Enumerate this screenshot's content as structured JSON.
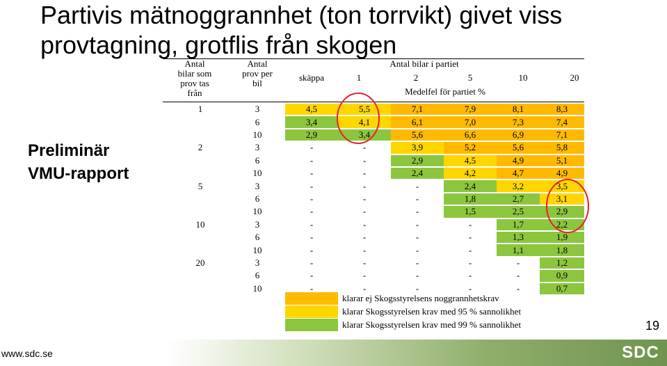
{
  "title": "Partivis mätnoggrannhet (ton torrvikt) givet viss provtagning, grotflis från skogen",
  "side_label_line1": "Preliminär",
  "side_label_line2": "VMU-rapport",
  "page_number": "19",
  "footer_url": "www.sdc.se",
  "logo_text": "SDC",
  "colors": {
    "yellow": "#ffd600",
    "orange": "#ffb900",
    "green": "#8cc63e",
    "circle": "#e8202a"
  },
  "table": {
    "col_header_trucks": "Antal\nbilar som\nprov tas\nfrån",
    "col_header_samples": "Antal\nprov per\nbil",
    "col_header_group": "Antal bilar i partiet",
    "col_header_skappa": "skäppa",
    "batch_sizes": [
      "1",
      "2",
      "5",
      "10",
      "20"
    ],
    "col_header_subtitle": "Medelfel för partiet %",
    "rows": [
      {
        "trucks": "1",
        "samples": "3",
        "values": [
          "4,5",
          "5,5",
          "7,1",
          "7,9",
          "8,1",
          "8,3"
        ],
        "status": [
          "yellow",
          "yellow",
          "orange",
          "orange",
          "orange",
          "orange"
        ]
      },
      {
        "trucks": "",
        "samples": "6",
        "values": [
          "3,4",
          "4,1",
          "6,1",
          "7,0",
          "7,3",
          "7,4"
        ],
        "status": [
          "green",
          "yellow",
          "orange",
          "orange",
          "orange",
          "orange"
        ]
      },
      {
        "trucks": "",
        "samples": "10",
        "values": [
          "2,9",
          "3,4",
          "5,6",
          "6,6",
          "6,9",
          "7,1"
        ],
        "status": [
          "green",
          "green",
          "orange",
          "orange",
          "orange",
          "orange"
        ]
      },
      {
        "trucks": "2",
        "samples": "3",
        "values": [
          "-",
          "-",
          "3,9",
          "5,2",
          "5,6",
          "5,8"
        ],
        "status": [
          "none",
          "none",
          "yellow",
          "orange",
          "orange",
          "orange"
        ]
      },
      {
        "trucks": "",
        "samples": "6",
        "values": [
          "-",
          "-",
          "2,9",
          "4,5",
          "4,9",
          "5,1"
        ],
        "status": [
          "none",
          "none",
          "green",
          "yellow",
          "orange",
          "orange"
        ]
      },
      {
        "trucks": "",
        "samples": "10",
        "values": [
          "-",
          "-",
          "2,4",
          "4,2",
          "4,7",
          "4,9"
        ],
        "status": [
          "none",
          "none",
          "green",
          "yellow",
          "orange",
          "orange"
        ]
      },
      {
        "trucks": "5",
        "samples": "3",
        "values": [
          "-",
          "-",
          "-",
          "2,4",
          "3,2",
          "3,5"
        ],
        "status": [
          "none",
          "none",
          "none",
          "green",
          "yellow",
          "yellow"
        ]
      },
      {
        "trucks": "",
        "samples": "6",
        "values": [
          "-",
          "-",
          "-",
          "1,8",
          "2,7",
          "3,1"
        ],
        "status": [
          "none",
          "none",
          "none",
          "green",
          "green",
          "yellow"
        ]
      },
      {
        "trucks": "",
        "samples": "10",
        "values": [
          "-",
          "-",
          "-",
          "1,5",
          "2,5",
          "2,9"
        ],
        "status": [
          "none",
          "none",
          "none",
          "green",
          "green",
          "green"
        ]
      },
      {
        "trucks": "10",
        "samples": "3",
        "values": [
          "-",
          "-",
          "-",
          "-",
          "1,7",
          "2,2"
        ],
        "status": [
          "none",
          "none",
          "none",
          "none",
          "green",
          "green"
        ]
      },
      {
        "trucks": "",
        "samples": "6",
        "values": [
          "-",
          "-",
          "-",
          "-",
          "1,3",
          "1,9"
        ],
        "status": [
          "none",
          "none",
          "none",
          "none",
          "green",
          "green"
        ]
      },
      {
        "trucks": "",
        "samples": "10",
        "values": [
          "-",
          "-",
          "-",
          "-",
          "1,1",
          "1,8"
        ],
        "status": [
          "none",
          "none",
          "none",
          "none",
          "green",
          "green"
        ]
      },
      {
        "trucks": "20",
        "samples": "3",
        "values": [
          "-",
          "-",
          "-",
          "-",
          "-",
          "1,2"
        ],
        "status": [
          "none",
          "none",
          "none",
          "none",
          "none",
          "green"
        ]
      },
      {
        "trucks": "",
        "samples": "6",
        "values": [
          "-",
          "-",
          "-",
          "-",
          "-",
          "0,9"
        ],
        "status": [
          "none",
          "none",
          "none",
          "none",
          "none",
          "green"
        ]
      },
      {
        "trucks": "",
        "samples": "10",
        "values": [
          "-",
          "-",
          "-",
          "-",
          "-",
          "0,7"
        ],
        "status": [
          "none",
          "none",
          "none",
          "none",
          "none",
          "green"
        ]
      }
    ]
  },
  "legend": [
    {
      "color": "orange",
      "label": "klarar ej Skogsstyrelsens noggrannhetskrav"
    },
    {
      "color": "yellow",
      "label": "klarar Skogsstyrelsen krav med 95 % sannolikhet"
    },
    {
      "color": "green",
      "label": "klarar Skogsstyrelsen krav med 99 % sannolikhet"
    }
  ]
}
